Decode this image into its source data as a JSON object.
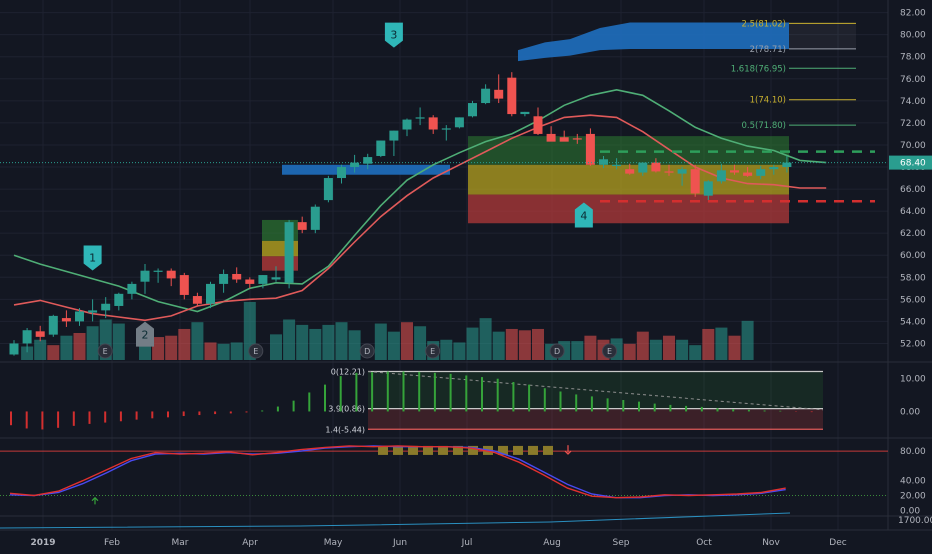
{
  "chart_data": {
    "type": "candlestick",
    "x_ticks": [
      "2019",
      "Feb",
      "Mar",
      "Apr",
      "May",
      "Jun",
      "Jul",
      "Aug",
      "Sep",
      "Oct",
      "Nov",
      "Dec"
    ],
    "price_axis": {
      "ticks": [
        "82.00",
        "80.00",
        "78.00",
        "76.00",
        "74.00",
        "72.00",
        "70.00",
        "68.00",
        "66.00",
        "64.00",
        "62.00",
        "60.00",
        "58.00",
        "56.00",
        "54.00",
        "52.00"
      ],
      "range": [
        50.5,
        82.6
      ],
      "last_price": "68.40"
    },
    "candles": [
      [
        51,
        52.3,
        50.9,
        52
      ],
      [
        52,
        53.4,
        51.2,
        53.2
      ],
      [
        53.1,
        53.6,
        52.2,
        52.6
      ],
      [
        52.8,
        54.6,
        52.6,
        54.5
      ],
      [
        54.3,
        55,
        53.5,
        54
      ],
      [
        54,
        55.2,
        53.6,
        54.9
      ],
      [
        54.8,
        56,
        54,
        55
      ],
      [
        55,
        56.2,
        54.3,
        55.6
      ],
      [
        55.4,
        56.6,
        55,
        56.5
      ],
      [
        56.5,
        57.6,
        56,
        57.4
      ],
      [
        57.6,
        59.2,
        56.5,
        58.6
      ],
      [
        58.5,
        58.8,
        57.5,
        58.6
      ],
      [
        58.6,
        58.8,
        57.2,
        57.9
      ],
      [
        58.2,
        58.4,
        56,
        56.4
      ],
      [
        56.3,
        56.6,
        55.4,
        55.6
      ],
      [
        55.6,
        57.6,
        55.2,
        57.4
      ],
      [
        57.4,
        58.7,
        56.6,
        58.3
      ],
      [
        58.3,
        58.9,
        57.5,
        57.8
      ],
      [
        57.8,
        58,
        57,
        57.4
      ],
      [
        57.4,
        58.2,
        57,
        58.2
      ],
      [
        57.8,
        59,
        57.6,
        58
      ],
      [
        57.5,
        63.2,
        57,
        63
      ],
      [
        63,
        63.5,
        62,
        62.3
      ],
      [
        62.3,
        64.6,
        62,
        64.4
      ],
      [
        65,
        67.2,
        64.8,
        67
      ],
      [
        67,
        68.2,
        66.5,
        68
      ],
      [
        68,
        69.1,
        67.5,
        68.4
      ],
      [
        68.3,
        69.2,
        67.8,
        68.9
      ],
      [
        69,
        70.4,
        68.9,
        70.4
      ],
      [
        70.4,
        71.3,
        69,
        71.3
      ],
      [
        71.4,
        72.4,
        70.8,
        72.3
      ],
      [
        72.4,
        73.4,
        71.8,
        72.5
      ],
      [
        72.5,
        72.7,
        71,
        71.4
      ],
      [
        71.4,
        71.8,
        70.4,
        71.5
      ],
      [
        71.6,
        72.5,
        71.5,
        72.5
      ],
      [
        72.6,
        74,
        72.5,
        73.8
      ],
      [
        73.8,
        75.5,
        73.7,
        75.1
      ],
      [
        75,
        76.4,
        73.8,
        74.2
      ],
      [
        76.1,
        76.6,
        72.6,
        72.8
      ],
      [
        72.8,
        73,
        72.6,
        73
      ],
      [
        72.6,
        73.4,
        70.9,
        71
      ],
      [
        71,
        71.7,
        70.5,
        70.3
      ],
      [
        70.7,
        71.3,
        70.4,
        70.3
      ],
      [
        70.6,
        71,
        70.1,
        70.5
      ],
      [
        71,
        71.5,
        68.1,
        68.2
      ],
      [
        68.2,
        69,
        67.9,
        68.7
      ],
      [
        68.2,
        68.8,
        67.8,
        68.2
      ],
      [
        67.8,
        68.3,
        67.3,
        67.4
      ],
      [
        67.5,
        68.4,
        67.2,
        68.4
      ],
      [
        68.4,
        68.8,
        67.5,
        67.6
      ],
      [
        67.6,
        68.2,
        67.2,
        67.5
      ],
      [
        67.4,
        68,
        66.3,
        67.8
      ],
      [
        67.8,
        68.2,
        65.3,
        65.6
      ],
      [
        65.4,
        66.8,
        65,
        66.7
      ],
      [
        66.7,
        68.3,
        66.5,
        67.7
      ],
      [
        67.7,
        68.2,
        67.3,
        67.5
      ],
      [
        67.5,
        68,
        67.1,
        67.2
      ],
      [
        67.2,
        68.1,
        66.9,
        67.8
      ],
      [
        67.8,
        68.2,
        67.3,
        68
      ],
      [
        68,
        69,
        67.5,
        68.4
      ]
    ],
    "volume": [
      [
        1,
        1,
        "up"
      ],
      [
        2,
        1.5,
        "up"
      ],
      [
        3,
        1.1,
        "down"
      ],
      [
        4,
        1.8,
        "up"
      ],
      [
        5,
        2,
        "down"
      ],
      [
        6,
        2.5,
        "up"
      ],
      [
        7,
        3,
        "up"
      ],
      [
        8,
        2.7,
        "up"
      ],
      [
        10,
        2.3,
        "up"
      ],
      [
        11,
        1.7,
        "down"
      ],
      [
        12,
        1.8,
        "down"
      ],
      [
        13,
        2.3,
        "down"
      ],
      [
        14,
        2.8,
        "up"
      ],
      [
        15,
        1.3,
        "down"
      ],
      [
        16,
        1.2,
        "up"
      ],
      [
        17,
        1.3,
        "up"
      ],
      [
        18,
        4.3,
        "up"
      ],
      [
        20,
        1.9,
        "up"
      ],
      [
        21,
        3,
        "up"
      ],
      [
        22,
        2.6,
        "up"
      ],
      [
        23,
        2.3,
        "up"
      ],
      [
        24,
        2.6,
        "up"
      ],
      [
        25,
        2.8,
        "up"
      ],
      [
        26,
        2.2,
        "up"
      ],
      [
        28,
        2.7,
        "up"
      ],
      [
        29,
        2.1,
        "up"
      ],
      [
        30,
        2.8,
        "down"
      ],
      [
        31,
        2.5,
        "up"
      ],
      [
        32,
        1.4,
        "up"
      ],
      [
        33,
        1.5,
        "up"
      ],
      [
        34,
        1.3,
        "up"
      ],
      [
        35,
        2.4,
        "up"
      ],
      [
        36,
        3.1,
        "up"
      ],
      [
        37,
        2.1,
        "up"
      ],
      [
        38,
        2.3,
        "down"
      ],
      [
        39,
        2.2,
        "down"
      ],
      [
        40,
        2.3,
        "down"
      ],
      [
        41,
        1.2,
        "up"
      ],
      [
        42,
        1.4,
        "up"
      ],
      [
        43,
        1.4,
        "up"
      ],
      [
        44,
        1.8,
        "down"
      ],
      [
        45,
        1.5,
        "down"
      ],
      [
        46,
        1.6,
        "up"
      ],
      [
        47,
        1.2,
        "down"
      ],
      [
        48,
        2.1,
        "down"
      ],
      [
        49,
        1.5,
        "up"
      ],
      [
        50,
        1.8,
        "down"
      ],
      [
        51,
        1.5,
        "up"
      ],
      [
        52,
        1.1,
        "up"
      ],
      [
        53,
        2.3,
        "down"
      ],
      [
        54,
        2.4,
        "up"
      ],
      [
        55,
        1.8,
        "down"
      ],
      [
        56,
        2.9,
        "up"
      ]
    ],
    "moving_averages": [
      {
        "color": "#4fae76",
        "values": [
          [
            0,
            60
          ],
          [
            2,
            59.2
          ],
          [
            5,
            58.2
          ],
          [
            8,
            57.2
          ],
          [
            11,
            55.8
          ],
          [
            14,
            54.9
          ],
          [
            16,
            55.8
          ],
          [
            18,
            57
          ],
          [
            20,
            57.5
          ],
          [
            22,
            57.4
          ],
          [
            24,
            59
          ],
          [
            26,
            61.8
          ],
          [
            28,
            64.5
          ],
          [
            30,
            66.8
          ],
          [
            32,
            68.2
          ],
          [
            34,
            69.3
          ],
          [
            36,
            70.3
          ],
          [
            38,
            71
          ],
          [
            40,
            72.2
          ],
          [
            42,
            73.6
          ],
          [
            44,
            74.5
          ],
          [
            46,
            75
          ],
          [
            48,
            74.5
          ],
          [
            50,
            73.1
          ],
          [
            52,
            71.6
          ],
          [
            54,
            70.6
          ],
          [
            56,
            69.9
          ],
          [
            58,
            69.5
          ],
          [
            60,
            68.6
          ],
          [
            62,
            68.4
          ]
        ]
      },
      {
        "color": "#e05a5a",
        "values": [
          [
            0,
            55.5
          ],
          [
            2,
            55.9
          ],
          [
            4,
            55.3
          ],
          [
            6,
            54.7
          ],
          [
            8,
            54.4
          ],
          [
            10,
            54.1
          ],
          [
            12,
            54.5
          ],
          [
            14,
            55.4
          ],
          [
            16,
            55.8
          ],
          [
            18,
            56
          ],
          [
            20,
            56.1
          ],
          [
            22,
            56.8
          ],
          [
            24,
            58.8
          ],
          [
            26,
            61.2
          ],
          [
            28,
            63.5
          ],
          [
            30,
            65.4
          ],
          [
            32,
            67
          ],
          [
            34,
            68.2
          ],
          [
            36,
            69.4
          ],
          [
            38,
            70.6
          ],
          [
            40,
            71.6
          ],
          [
            42,
            72.5
          ],
          [
            44,
            72.7
          ],
          [
            46,
            72.5
          ],
          [
            48,
            71.2
          ],
          [
            50,
            69.6
          ],
          [
            52,
            68
          ],
          [
            54,
            67
          ],
          [
            56,
            66.5
          ],
          [
            58,
            66.4
          ],
          [
            60,
            66.1
          ],
          [
            62,
            66.1
          ]
        ]
      }
    ],
    "labels": [
      {
        "text": "1",
        "color": "#2fb7b8",
        "bar": 6,
        "price": 59.8,
        "dir": "down"
      },
      {
        "text": "2",
        "color": "#737d86",
        "bar": 10,
        "price": 52.8,
        "dir": "up"
      },
      {
        "text": "3",
        "color": "#2fb7b8",
        "bar": 29,
        "price": 80,
        "dir": "down"
      },
      {
        "text": "4",
        "color": "#2fb7b8",
        "bar": 43.5,
        "price": 63.6,
        "dir": "up"
      }
    ],
    "earnings_markers": [
      {
        "text": "E",
        "bar": 6.5
      },
      {
        "text": "E",
        "bar": 18
      },
      {
        "text": "D",
        "bar": 26.5
      },
      {
        "text": "E",
        "bar": 31.5
      },
      {
        "text": "D",
        "bar": 41
      },
      {
        "text": "E",
        "bar": 45
      }
    ],
    "fib_levels": [
      {
        "label": "2.5(81.02)",
        "price": 81.02,
        "color": "#c9b12f"
      },
      {
        "label": "2(78.71)",
        "price": 78.71,
        "color": "#9aa0ab"
      },
      {
        "label": "1.618(76.95)",
        "price": 76.95,
        "color": "#4fae76"
      },
      {
        "label": "1(74.10)",
        "price": 74.1,
        "color": "#c9b12f"
      },
      {
        "label": "0.5(71.80)",
        "price": 71.8,
        "color": "#4fae76"
      }
    ],
    "oscillator": {
      "ticks": [
        "10.00",
        "0.00"
      ],
      "levels": [
        {
          "label": "0(12.21)",
          "value": 12.21
        },
        {
          "label": "3.9(0.86)",
          "value": 0.86
        },
        {
          "label": "1.4(-5.44)",
          "value": -5.44
        }
      ],
      "range": [
        -7.5,
        14.5
      ],
      "bars": [
        -4.2,
        -5.2,
        -5.5,
        -5,
        -4.4,
        -3.8,
        -3.4,
        -3,
        -2.5,
        -2.1,
        -1.8,
        -1.4,
        -1.1,
        -0.8,
        -0.6,
        -0.3,
        0.3,
        1.5,
        3.3,
        5.8,
        8.2,
        10.8,
        11.8,
        12,
        12.2,
        12.2,
        12.1,
        11.8,
        11.5,
        11,
        10.5,
        10,
        9,
        8.2,
        7.1,
        6.1,
        5.2,
        4.6,
        4,
        3.5,
        3,
        2.4,
        2,
        1.7,
        1.4,
        1,
        0.7,
        0.5,
        0.3,
        0.2,
        -0.1,
        -0.2
      ]
    },
    "stochastic": {
      "ticks": [
        "80.00",
        "40.00",
        "20.00",
        "0.00"
      ],
      "range": [
        -5,
        95
      ],
      "k": [
        [
          0,
          23
        ],
        [
          4,
          20
        ],
        [
          8,
          26
        ],
        [
          12,
          40
        ],
        [
          16,
          55
        ],
        [
          20,
          70
        ],
        [
          24,
          78
        ],
        [
          28,
          76
        ],
        [
          32,
          77
        ],
        [
          36,
          79
        ],
        [
          40,
          75
        ],
        [
          44,
          78
        ],
        [
          48,
          82
        ],
        [
          52,
          85
        ],
        [
          56,
          87
        ],
        [
          60,
          86
        ],
        [
          64,
          87
        ],
        [
          68,
          86
        ],
        [
          72,
          86
        ],
        [
          76,
          84
        ],
        [
          80,
          78
        ],
        [
          84,
          65
        ],
        [
          88,
          48
        ],
        [
          92,
          30
        ],
        [
          96,
          19
        ],
        [
          100,
          17
        ],
        [
          104,
          18
        ],
        [
          108,
          21
        ],
        [
          112,
          20
        ],
        [
          116,
          21
        ],
        [
          120,
          22
        ],
        [
          124,
          24
        ],
        [
          128,
          30
        ]
      ],
      "d": [
        [
          0,
          21
        ],
        [
          4,
          20
        ],
        [
          8,
          24
        ],
        [
          12,
          36
        ],
        [
          16,
          51
        ],
        [
          20,
          67
        ],
        [
          24,
          76
        ],
        [
          28,
          77
        ],
        [
          32,
          76
        ],
        [
          36,
          78
        ],
        [
          40,
          76
        ],
        [
          44,
          77
        ],
        [
          48,
          80
        ],
        [
          52,
          84
        ],
        [
          56,
          86
        ],
        [
          60,
          87
        ],
        [
          64,
          86
        ],
        [
          68,
          86
        ],
        [
          72,
          86
        ],
        [
          76,
          85
        ],
        [
          80,
          80
        ],
        [
          84,
          69
        ],
        [
          88,
          52
        ],
        [
          92,
          35
        ],
        [
          96,
          22
        ],
        [
          100,
          17
        ],
        [
          104,
          17
        ],
        [
          108,
          20
        ],
        [
          112,
          21
        ],
        [
          116,
          20
        ],
        [
          120,
          21
        ],
        [
          124,
          23
        ],
        [
          128,
          28
        ]
      ]
    },
    "bottom_panel": {
      "ticks": [
        "1700.00"
      ]
    }
  }
}
